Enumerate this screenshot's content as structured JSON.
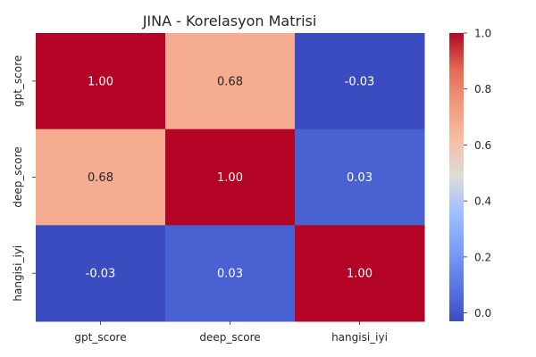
{
  "chart_data": {
    "type": "heatmap",
    "title": "JINA - Korelasyon Matrisi",
    "x_labels": [
      "gpt_score",
      "deep_score",
      "hangisi_iyi"
    ],
    "y_labels": [
      "gpt_score",
      "deep_score",
      "hangisi_iyi"
    ],
    "values": [
      [
        1.0,
        0.68,
        -0.03
      ],
      [
        0.68,
        1.0,
        0.03
      ],
      [
        -0.03,
        0.03,
        1.0
      ]
    ],
    "value_labels": [
      [
        "1.00",
        "0.68",
        "-0.03"
      ],
      [
        "0.68",
        "1.00",
        "0.03"
      ],
      [
        "-0.03",
        "0.03",
        "1.00"
      ]
    ],
    "colormap": "coolwarm",
    "vmin": -0.03,
    "vmax": 1.0,
    "colorbar_ticks": [
      0.0,
      0.2,
      0.4,
      0.6,
      0.8,
      1.0
    ],
    "colorbar_tick_labels": [
      "0.0",
      "0.2",
      "0.4",
      "0.6",
      "0.8",
      "1.0"
    ]
  }
}
